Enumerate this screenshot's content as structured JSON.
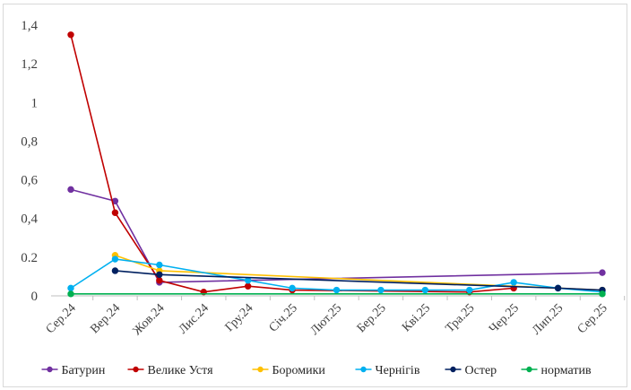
{
  "chart_data": {
    "type": "line",
    "title": "",
    "xlabel": "",
    "ylabel": "",
    "categories": [
      "Сер.24",
      "Вер.24",
      "Жов.24",
      "Лис.24",
      "Гру.24",
      "Січ.25",
      "Лют.25",
      "Бер.25",
      "Кві.25",
      "Тра.25",
      "Чер.25",
      "Лип.25",
      "Сер.25"
    ],
    "ylim": [
      0,
      1.4
    ],
    "yticks": [
      "0",
      "0.2",
      "0,4",
      "0,6",
      "0,8",
      "1",
      "1,2",
      "1,4"
    ],
    "grid": false,
    "legend_position": "bottom",
    "series": [
      {
        "name": "Батурин",
        "color": "#7030a0",
        "markers": true,
        "values": [
          0.55,
          0.49,
          0.07,
          null,
          null,
          null,
          null,
          null,
          null,
          null,
          null,
          null,
          0.12
        ]
      },
      {
        "name": "Велике Устя",
        "color": "#c00000",
        "markers": true,
        "values": [
          1.35,
          0.43,
          0.08,
          0.02,
          0.05,
          0.03,
          null,
          null,
          null,
          0.02,
          0.04,
          null,
          null
        ]
      },
      {
        "name": "Боромики",
        "color": "#ffc000",
        "markers": true,
        "values": [
          null,
          0.21,
          0.13,
          null,
          null,
          null,
          null,
          null,
          null,
          null,
          null,
          null,
          0.03
        ]
      },
      {
        "name": "Чернігів",
        "color": "#00b0f0",
        "markers": true,
        "values": [
          0.04,
          0.19,
          0.16,
          null,
          0.08,
          0.04,
          0.03,
          0.03,
          0.03,
          0.03,
          0.07,
          0.04,
          0.02
        ]
      },
      {
        "name": "Остер",
        "color": "#002060",
        "markers": true,
        "values": [
          null,
          0.13,
          0.11,
          null,
          null,
          null,
          null,
          null,
          null,
          null,
          null,
          0.04,
          0.03
        ]
      },
      {
        "name": "норматив",
        "color": "#00b050",
        "markers": true,
        "values": [
          0.01,
          null,
          null,
          null,
          null,
          null,
          null,
          null,
          null,
          null,
          null,
          null,
          0.01
        ]
      }
    ]
  }
}
